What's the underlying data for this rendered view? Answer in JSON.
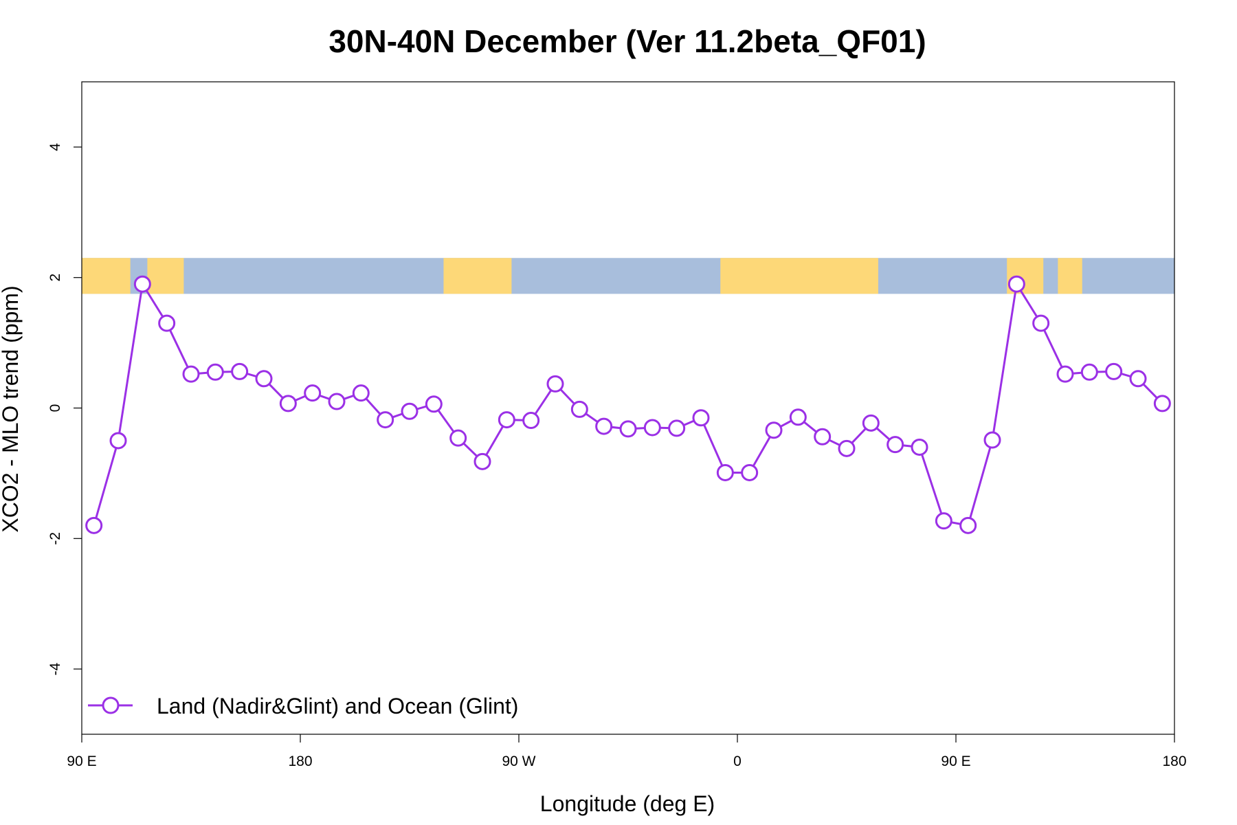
{
  "chart_data": {
    "type": "line",
    "title": "30N-40N December (Ver 11.2beta_QF01)",
    "xlabel": "Longitude (deg E)",
    "ylabel": "XCO2 - MLO trend (ppm)",
    "xlim": [
      90,
      540
    ],
    "ylim": [
      -5,
      5
    ],
    "x_ticks": [
      {
        "value": 90,
        "label": "90 E"
      },
      {
        "value": 180,
        "label": "180"
      },
      {
        "value": 270,
        "label": "90 W"
      },
      {
        "value": 360,
        "label": "0"
      },
      {
        "value": 450,
        "label": "90 E"
      },
      {
        "value": 540,
        "label": "180"
      }
    ],
    "y_ticks": [
      {
        "value": -4,
        "label": "-4"
      },
      {
        "value": -2,
        "label": "-2"
      },
      {
        "value": 0,
        "label": "0"
      },
      {
        "value": 2,
        "label": "2"
      },
      {
        "value": 4,
        "label": "4"
      }
    ],
    "legend": {
      "position": "bottom-left"
    },
    "series": [
      {
        "name": "Land (Nadir&Glint) and Ocean (Glint)",
        "color": "#9b30e6",
        "marker": "open-circle",
        "x": [
          95,
          105,
          115,
          125,
          135,
          145,
          155,
          165,
          175,
          185,
          195,
          205,
          215,
          225,
          235,
          245,
          255,
          265,
          275,
          285,
          295,
          305,
          315,
          325,
          335,
          345,
          355,
          365,
          375,
          385,
          395,
          405,
          415,
          425,
          435,
          445,
          455,
          465,
          475,
          485,
          495,
          505,
          515,
          525,
          535
        ],
        "y": [
          -1.8,
          -0.5,
          1.9,
          1.3,
          0.52,
          0.55,
          0.56,
          0.45,
          0.07,
          0.23,
          0.1,
          0.23,
          -0.18,
          -0.05,
          0.06,
          -0.46,
          -0.82,
          -0.18,
          -0.19,
          0.37,
          -0.02,
          -0.28,
          -0.32,
          -0.3,
          -0.31,
          -0.15,
          -0.99,
          -0.99,
          -0.34,
          -0.14,
          -0.44,
          -0.62,
          -0.23,
          -0.56,
          -0.6,
          -1.73,
          -1.8,
          -0.49,
          1.9,
          1.3,
          0.52,
          0.55,
          0.56,
          0.45,
          0.07
        ]
      }
    ],
    "map_strip": {
      "y_range": [
        1.75,
        2.3
      ],
      "ocean_color": "#a8bedc",
      "land_color": "#fdd878",
      "land_segments": [
        [
          90,
          110
        ],
        [
          117,
          132
        ],
        [
          239,
          267
        ],
        [
          353,
          418
        ],
        [
          471,
          486
        ],
        [
          492,
          502
        ]
      ]
    }
  }
}
